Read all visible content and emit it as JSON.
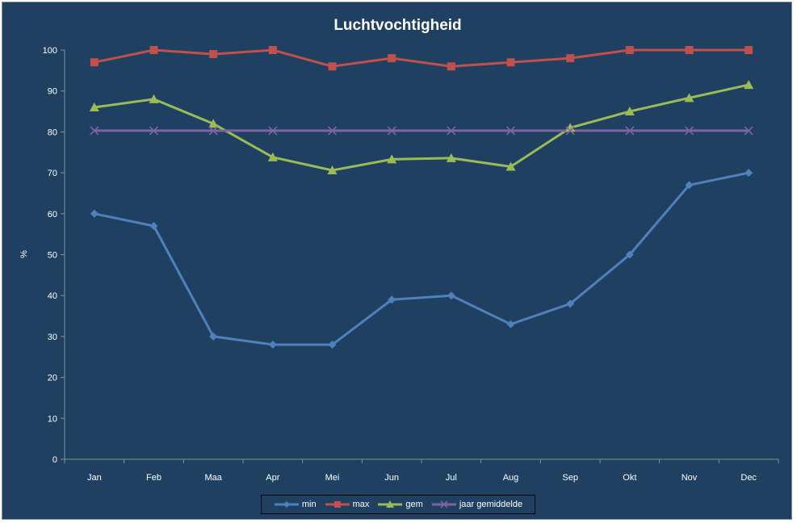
{
  "chart_data": {
    "type": "line",
    "title": "Luchtvochtigheid",
    "xlabel": "",
    "ylabel": "%",
    "ylim": [
      0,
      100
    ],
    "yticks": [
      0,
      10,
      20,
      30,
      40,
      50,
      60,
      70,
      80,
      90,
      100
    ],
    "grid": false,
    "legend_position": "bottom",
    "categories": [
      "Jan",
      "Feb",
      "Maa",
      "Apr",
      "Mei",
      "Jun",
      "Jul",
      "Aug",
      "Sep",
      "Okt",
      "Nov",
      "Dec"
    ],
    "series": [
      {
        "name": "min",
        "color": "#4f81bd",
        "marker": "diamond",
        "values": [
          60,
          57,
          30,
          28,
          28,
          39,
          40,
          33,
          38,
          50,
          67,
          70
        ]
      },
      {
        "name": "max",
        "color": "#c0504d",
        "marker": "square",
        "values": [
          97,
          100,
          99,
          100,
          96,
          98,
          96,
          97,
          98,
          100,
          100,
          100
        ]
      },
      {
        "name": "gem",
        "color": "#9bbb59",
        "marker": "triangle",
        "values": [
          86,
          88,
          82,
          73.8,
          70.6,
          73.3,
          73.6,
          71.5,
          81,
          85,
          88.3,
          91.5
        ]
      },
      {
        "name": "jaar gemiddelde",
        "color": "#8064a2",
        "marker": "x",
        "values": [
          80.3,
          80.3,
          80.3,
          80.3,
          80.3,
          80.3,
          80.3,
          80.3,
          80.3,
          80.3,
          80.3,
          80.3
        ]
      }
    ]
  }
}
